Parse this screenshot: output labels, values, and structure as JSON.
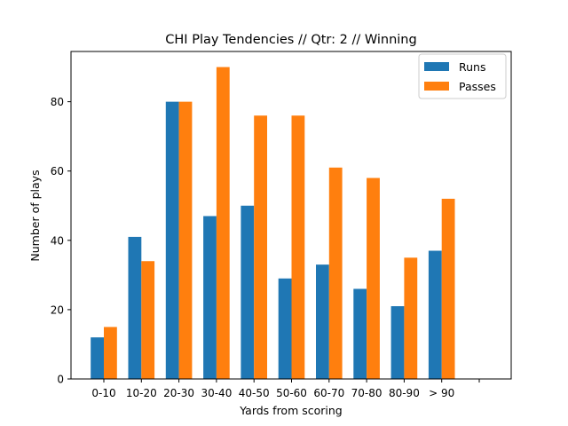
{
  "chart_data": {
    "type": "bar",
    "title": "CHI Play Tendencies // Qtr: 2 // Winning",
    "xlabel": "Yards from scoring",
    "ylabel": "Number of plays",
    "categories": [
      "0-10",
      "10-20",
      "20-30",
      "30-40",
      "40-50",
      "50-60",
      "60-70",
      "70-80",
      "80-90",
      "> 90"
    ],
    "series": [
      {
        "name": "Runs",
        "values": [
          12,
          41,
          80,
          47,
          50,
          29,
          33,
          26,
          21,
          37
        ],
        "color": "#1f77b4"
      },
      {
        "name": "Passes",
        "values": [
          15,
          34,
          80,
          90,
          76,
          76,
          61,
          58,
          35,
          52
        ],
        "color": "#ff7f0e"
      }
    ],
    "ylim": [
      0,
      94.5
    ],
    "yticks": [
      0,
      20,
      40,
      60,
      80
    ],
    "extra_empty_xtick": true,
    "grid": false,
    "legend": "top-right"
  }
}
